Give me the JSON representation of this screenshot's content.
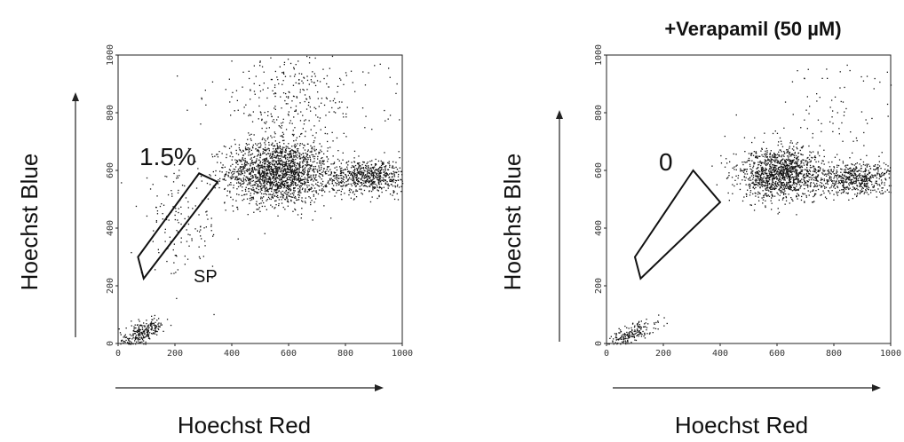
{
  "chart_data": [
    {
      "type": "scatter",
      "title": "",
      "xlabel": "Hoechst Red",
      "ylabel": "Hoechst Blue",
      "xlim": [
        0,
        1000
      ],
      "ylim": [
        0,
        1000
      ],
      "x_ticks": [
        0,
        200,
        400,
        600,
        800,
        1000
      ],
      "y_ticks": [
        0,
        200,
        400,
        600,
        800,
        1000
      ],
      "x_tick_labels": [
        "0",
        "200",
        "400",
        "600",
        "800",
        "1000"
      ],
      "y_tick_labels": [
        "0",
        "200",
        "400",
        "600",
        "800",
        "1000"
      ],
      "grid": false,
      "gate_label": "SP",
      "gate_percent": "1.5%",
      "gate_percent_value": 1.5,
      "gate_polygon": [
        [
          70,
          300
        ],
        [
          285,
          590
        ],
        [
          350,
          560
        ],
        [
          90,
          225
        ]
      ],
      "populations": [
        {
          "name": "main",
          "cx": 560,
          "cy": 595,
          "sx": 90,
          "sy": 55,
          "n": 1800
        },
        {
          "name": "tail",
          "cx": 880,
          "cy": 580,
          "sx": 80,
          "sy": 30,
          "n": 700
        },
        {
          "name": "upper",
          "cx": 620,
          "cy": 850,
          "sx": 150,
          "sy": 100,
          "n": 350
        },
        {
          "name": "sp",
          "cx": 220,
          "cy": 410,
          "sx": 70,
          "sy": 90,
          "n": 140
        },
        {
          "name": "debris",
          "cx": 80,
          "cy": 50,
          "sx": 40,
          "sy": 30,
          "n": 260
        }
      ]
    },
    {
      "type": "scatter",
      "title": "+Verapamil (50 µM)",
      "xlabel": "Hoechst Red",
      "ylabel": "Hoechst Blue",
      "xlim": [
        0,
        1000
      ],
      "ylim": [
        0,
        1000
      ],
      "x_ticks": [
        0,
        200,
        400,
        600,
        800,
        1000
      ],
      "y_ticks": [
        0,
        200,
        400,
        600,
        800,
        1000
      ],
      "x_tick_labels": [
        "0",
        "200",
        "400",
        "600",
        "800",
        "1000"
      ],
      "y_tick_labels": [
        "0",
        "200",
        "400",
        "600",
        "800",
        "1000"
      ],
      "grid": false,
      "gate_percent": "0",
      "gate_percent_value": 0,
      "gate_polygon": [
        [
          100,
          300
        ],
        [
          305,
          600
        ],
        [
          400,
          490
        ],
        [
          120,
          225
        ]
      ],
      "populations": [
        {
          "name": "main",
          "cx": 610,
          "cy": 590,
          "sx": 75,
          "sy": 45,
          "n": 1300
        },
        {
          "name": "tail",
          "cx": 880,
          "cy": 570,
          "sx": 70,
          "sy": 28,
          "n": 550
        },
        {
          "name": "upper",
          "cx": 800,
          "cy": 820,
          "sx": 130,
          "sy": 110,
          "n": 90
        },
        {
          "name": "debris",
          "cx": 90,
          "cy": 45,
          "sx": 45,
          "sy": 25,
          "n": 180
        }
      ]
    }
  ]
}
